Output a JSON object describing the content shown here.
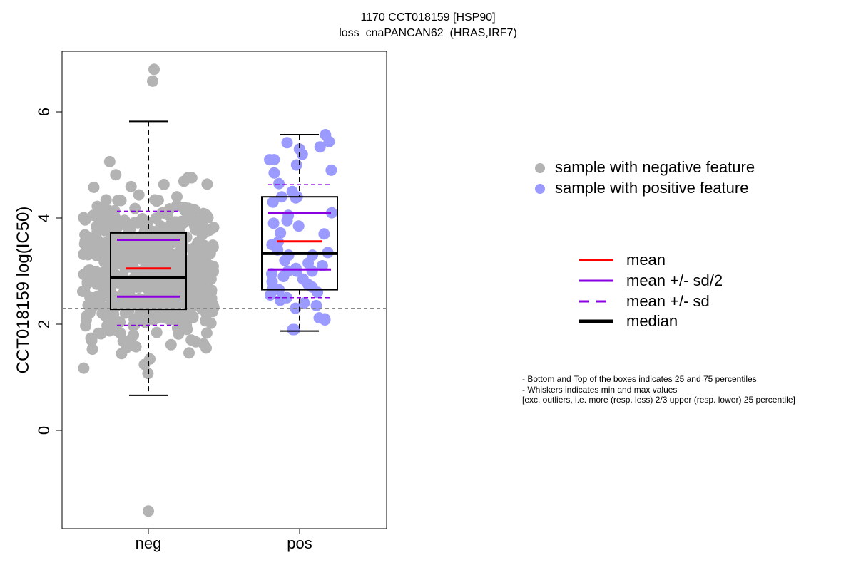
{
  "chart_data": {
    "type": "box",
    "title": "1170 CCT018159 [HSP90]",
    "subtitle": "loss_cnaPANCAN62_(HRAS,IRF7)",
    "ylabel": "CCT018159 log(IC50)",
    "xlabel": "",
    "ylim": [
      -1.8,
      7.0
    ],
    "yticks": [
      "0",
      "2",
      "4",
      "6"
    ],
    "categories": [
      "neg",
      "pos"
    ],
    "threshold_line": 2.3,
    "groups": [
      {
        "name": "neg",
        "min": 0.66,
        "q1": 2.28,
        "median": 2.88,
        "q3": 3.72,
        "max": 5.82,
        "mean": 3.05,
        "mean_minus_half_sd": 2.52,
        "mean_plus_half_sd": 3.59,
        "mean_minus_sd": 1.98,
        "mean_plus_sd": 4.13,
        "outliers": [
          -1.52,
          6.58,
          6.8
        ],
        "point_count": 620,
        "point_color": "#b3b3b3"
      },
      {
        "name": "pos",
        "min": 1.87,
        "q1": 2.65,
        "median": 3.33,
        "q3": 4.4,
        "max": 5.57,
        "mean": 3.56,
        "mean_minus_half_sd": 3.03,
        "mean_plus_half_sd": 4.1,
        "mean_minus_sd": 2.5,
        "mean_plus_sd": 4.63,
        "points": [
          5.57,
          5.44,
          5.42,
          5.34,
          5.3,
          5.2,
          5.1,
          5.1,
          5.0,
          4.9,
          4.85,
          4.65,
          4.5,
          4.4,
          4.4,
          4.38,
          4.3,
          4.1,
          4.05,
          3.95,
          3.9,
          3.85,
          3.72,
          3.7,
          3.55,
          3.5,
          3.4,
          3.35,
          3.3,
          3.3,
          3.2,
          3.15,
          3.1,
          3.05,
          3.0,
          3.0,
          3.0,
          2.95,
          2.9,
          2.85,
          2.8,
          2.75,
          2.7,
          2.65,
          2.65,
          2.6,
          2.55,
          2.5,
          2.45,
          2.4,
          2.35,
          2.3,
          2.12,
          2.1,
          2.08,
          1.9,
          1.9
        ],
        "point_color": "#9a9aff"
      }
    ],
    "legend": {
      "points": [
        {
          "label": "sample with negative feature",
          "color": "#b3b3b3"
        },
        {
          "label": "sample with positive feature",
          "color": "#9a9aff"
        }
      ],
      "lines": [
        {
          "label": "mean",
          "color": "#ff0000",
          "style": "solid"
        },
        {
          "label": "mean +/- sd/2",
          "color": "#8b00e0",
          "style": "solid"
        },
        {
          "label": "mean +/- sd",
          "color": "#8b00e0",
          "style": "dashed"
        },
        {
          "label": "median",
          "color": "#000000",
          "style": "thick"
        }
      ]
    },
    "notes": [
      "- Bottom and Top of the boxes indicates 25 and 75 percentiles",
      "- Whiskers indicates min and max values",
      "[exc. outliers, i.e. more (resp. less) 2/3 upper (resp. lower) 25 percentile]"
    ]
  }
}
